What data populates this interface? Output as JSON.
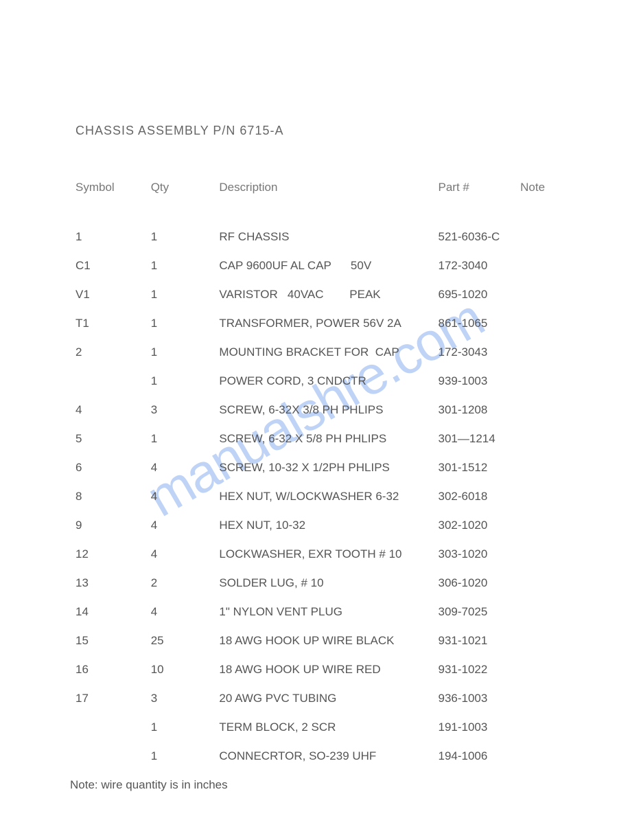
{
  "watermark": "manualshre.com",
  "title": "CHASSIS ASSEMBLY  P/N 6715-A",
  "columns": {
    "symbol": "Symbol",
    "qty": "Qty",
    "description": "Description",
    "part": "Part #",
    "note": "Note"
  },
  "rows": [
    {
      "symbol": "1",
      "qty": "1",
      "description": "RF CHASSIS",
      "part": "521-6036-C",
      "note": ""
    },
    {
      "symbol": "C1",
      "qty": "1",
      "description": "CAP 9600UF AL CAP      50V",
      "part": "172-3040",
      "note": ""
    },
    {
      "symbol": "V1",
      "qty": "1",
      "description": "VARISTOR   40VAC        PEAK",
      "part": "695-1020",
      "note": ""
    },
    {
      "symbol": "T1",
      "qty": "1",
      "description": "TRANSFORMER, POWER 56V 2A",
      "part": "861-1065",
      "note": ""
    },
    {
      "symbol": "2",
      "qty": "1",
      "description": "MOUNTING BRACKET FOR  CAP",
      "part": "172-3043",
      "note": ""
    },
    {
      "symbol": "",
      "qty": "1",
      "description": "POWER CORD, 3 CNDCTR",
      "part": "939-1003",
      "note": ""
    },
    {
      "symbol": "4",
      "qty": "3",
      "description": "SCREW, 6-32X 3/8 PH PHLIPS",
      "part": "301-1208",
      "note": ""
    },
    {
      "symbol": "5",
      "qty": "1",
      "description": "SCREW, 6-32 X 5/8 PH PHLIPS",
      "part": "301—1214",
      "note": ""
    },
    {
      "symbol": "6",
      "qty": "4",
      "description": "SCREW, 10-32 X 1/2PH PHLIPS",
      "part": "301-1512",
      "note": ""
    },
    {
      "symbol": "8",
      "qty": "4",
      "description": "HEX NUT, W/LOCKWASHER 6-32",
      "part": "302-6018",
      "note": ""
    },
    {
      "symbol": "9",
      "qty": "4",
      "description": "HEX NUT, 10-32",
      "part": "302-1020",
      "note": ""
    },
    {
      "symbol": "12",
      "qty": "4",
      "description": "LOCKWASHER, EXR TOOTH # 10",
      "part": "303-1020",
      "note": ""
    },
    {
      "symbol": "13",
      "qty": "2",
      "description": "SOLDER LUG, # 10",
      "part": "306-1020",
      "note": ""
    },
    {
      "symbol": "14",
      "qty": "4",
      "description": "1\" NYLON VENT PLUG",
      "part": "309-7025",
      "note": ""
    },
    {
      "symbol": "15",
      "qty": "25",
      "description": "18 AWG HOOK UP WIRE BLACK",
      "part": "931-1021",
      "note": ""
    },
    {
      "symbol": "16",
      "qty": "10",
      "description": "18 AWG HOOK UP WIRE RED",
      "part": "931-1022",
      "note": ""
    },
    {
      "symbol": "17",
      "qty": "3",
      "description": "20 AWG PVC TUBING",
      "part": "936-1003",
      "note": ""
    },
    {
      "symbol": "",
      "qty": "1",
      "description": "TERM BLOCK, 2 SCR",
      "part": "191-1003",
      "note": ""
    },
    {
      "symbol": "",
      "qty": "1",
      "description": "CONNECRTOR, SO-239 UHF",
      "part": "194-1006",
      "note": ""
    }
  ],
  "footer_note": "Note:  wire quantity is in inches",
  "styles": {
    "background_color": "#ffffff",
    "text_color": "#555555",
    "header_color": "#777777",
    "watermark_color": "rgba(70, 130, 230, 0.35)",
    "font_family": "Arial, Helvetica, sans-serif",
    "title_fontsize": 18,
    "body_fontsize": 17,
    "watermark_fontsize": 78
  }
}
